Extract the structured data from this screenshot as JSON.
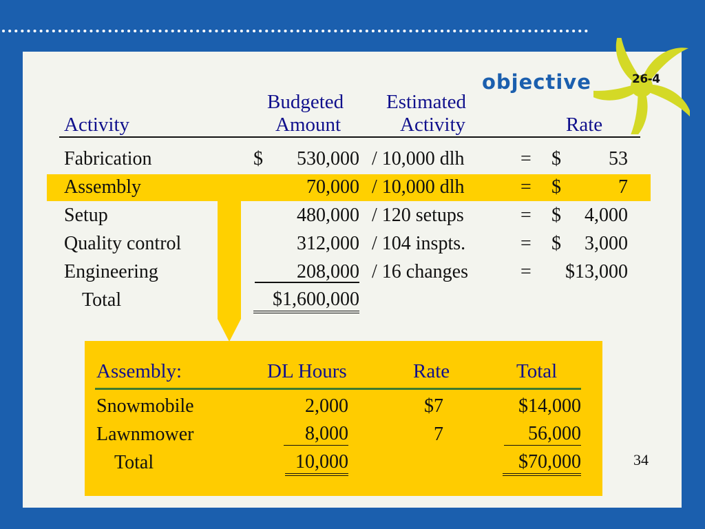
{
  "header": {
    "objective_word": "objective",
    "objective_number": "26-4"
  },
  "table1": {
    "col_activity": "Activity",
    "col_budgeted_line1": "Budgeted",
    "col_budgeted_line2": "Amount",
    "col_estimated_line1": "Estimated",
    "col_estimated_line2": "Activity",
    "col_rate": "Rate",
    "rows": [
      {
        "activity": "Fabrication",
        "dollar": "$",
        "amount": "530,000",
        "estimate": "/ 10,000 dlh",
        "eq": "=",
        "rate_dollar": "$",
        "rate": "53"
      },
      {
        "activity": "Assembly",
        "dollar": "",
        "amount": "70,000",
        "estimate": "/ 10,000 dlh",
        "eq": "=",
        "rate_dollar": "$",
        "rate": "7"
      },
      {
        "activity": "Setup",
        "dollar": "",
        "amount": "480,000",
        "estimate": "/ 120 setups",
        "eq": "=",
        "rate_dollar": "$",
        "rate": "4,000"
      },
      {
        "activity": "Quality control",
        "dollar": "",
        "amount": "312,000",
        "estimate": "/ 104 inspts.",
        "eq": "=",
        "rate_dollar": "$",
        "rate": "3,000"
      },
      {
        "activity": "Engineering",
        "dollar": "",
        "amount": "208,000",
        "estimate": "/ 16 changes",
        "eq": "=",
        "rate_dollar": "",
        "rate": "$13,000"
      }
    ],
    "total_label": "Total",
    "total_amount": "$1,600,000"
  },
  "table2": {
    "title": "Assembly:",
    "col_hours": "DL Hours",
    "col_rate": "Rate",
    "col_total": "Total",
    "rows": [
      {
        "product": "Snowmobile",
        "hours": "2,000",
        "rate": "$7",
        "total": "$14,000"
      },
      {
        "product": "Lawnmower",
        "hours": "8,000",
        "rate": "7",
        "total": "56,000"
      }
    ],
    "total_label": "Total",
    "total_hours": "10,000",
    "total_total": "$70,000"
  },
  "footer": {
    "page_number": "34"
  },
  "colors": {
    "background": "#1b5fae",
    "panel": "#f3f4ee",
    "highlight": "#ffd000",
    "header_text": "#10108c",
    "badge": "#d4d926"
  }
}
